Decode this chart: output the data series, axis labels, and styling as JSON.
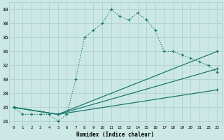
{
  "xlabel": "Humidex (Indice chaleur)",
  "bg_color": "#cce8e4",
  "grid_color": "#aacfcb",
  "line_color": "#1a7a6e",
  "xlim": [
    -0.5,
    23.5
  ],
  "ylim": [
    23.5,
    41
  ],
  "xticks": [
    0,
    1,
    2,
    3,
    4,
    5,
    6,
    7,
    8,
    9,
    10,
    11,
    12,
    13,
    14,
    15,
    16,
    17,
    18,
    19,
    20,
    21,
    22,
    23
  ],
  "yticks": [
    24,
    26,
    28,
    30,
    32,
    34,
    36,
    38,
    40
  ],
  "line1_x": [
    0,
    1,
    2,
    3,
    4,
    5,
    6,
    7,
    8,
    9,
    10,
    11,
    12,
    13,
    14,
    15,
    16,
    17,
    18,
    19,
    20,
    21,
    22,
    23
  ],
  "line1_y": [
    26,
    25,
    25,
    25,
    25,
    24,
    25,
    30,
    36,
    37,
    38,
    40,
    39,
    38.5,
    39.5,
    38.5,
    37,
    34,
    34,
    33.5,
    33,
    32.5,
    32,
    31
  ],
  "line2_x": [
    0,
    5,
    23
  ],
  "line2_y": [
    26,
    25,
    34
  ],
  "line3_x": [
    0,
    5,
    23
  ],
  "line3_y": [
    26,
    25,
    31.5
  ],
  "line4_x": [
    0,
    5,
    23
  ],
  "line4_y": [
    26,
    25,
    28.5
  ]
}
